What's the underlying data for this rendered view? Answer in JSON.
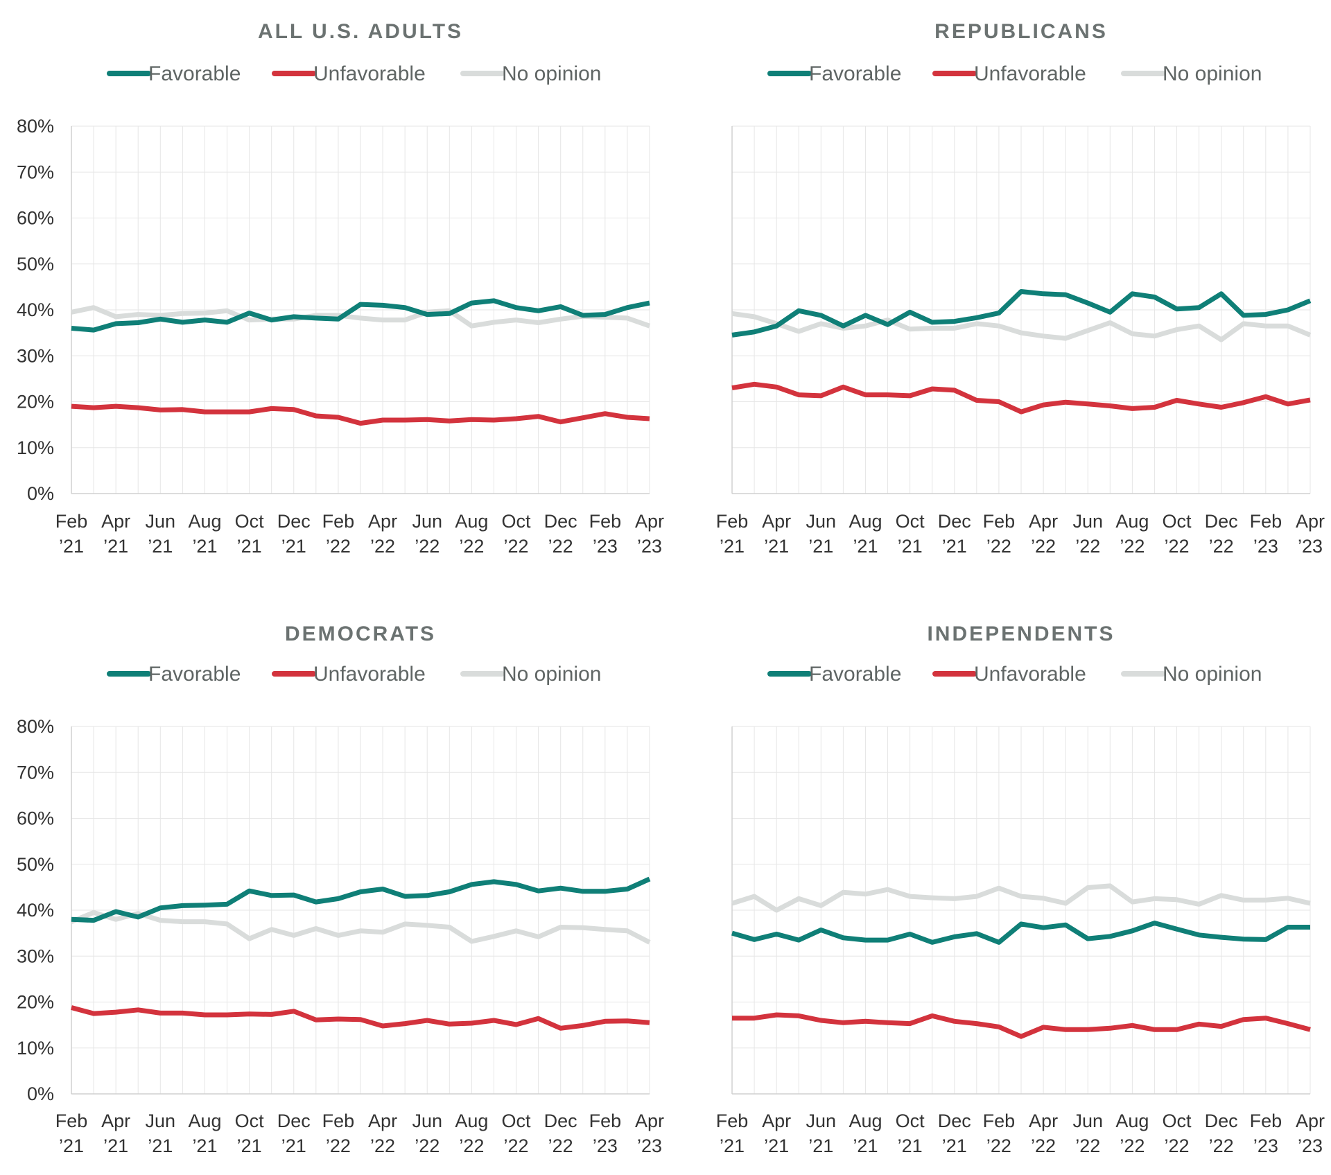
{
  "colors": {
    "favorable": "#0f7f77",
    "unfavorable": "#d3333d",
    "no_opinion": "#d9dcdb"
  },
  "chart_data": [
    {
      "type": "line",
      "title": "ALL U.S. ADULTS",
      "xlabel": "",
      "ylabel": "",
      "ylim": [
        0,
        80
      ],
      "y_ticks": [
        "0%",
        "10%",
        "20%",
        "30%",
        "40%",
        "50%",
        "60%",
        "70%",
        "80%"
      ],
      "x_ticks": [
        [
          "Feb",
          "’21"
        ],
        [
          "Apr",
          "’21"
        ],
        [
          "Jun",
          "’21"
        ],
        [
          "Aug",
          "’21"
        ],
        [
          "Oct",
          "’21"
        ],
        [
          "Dec",
          "’21"
        ],
        [
          "Feb",
          "’22"
        ],
        [
          "Apr",
          "’22"
        ],
        [
          "Jun",
          "’22"
        ],
        [
          "Aug",
          "’22"
        ],
        [
          "Oct",
          "’22"
        ],
        [
          "Dec",
          "’22"
        ],
        [
          "Feb",
          "’23"
        ],
        [
          "Apr",
          "’23"
        ]
      ],
      "series": [
        {
          "name": "Favorable",
          "values": [
            36,
            35.6,
            37,
            37.2,
            38,
            37.3,
            37.8,
            37.3,
            39.3,
            37.8,
            38.5,
            38.2,
            38,
            41.2,
            41,
            40.5,
            39,
            39.2,
            41.5,
            42,
            40.5,
            39.8,
            40.7,
            38.8,
            39,
            40.5,
            41.5
          ]
        },
        {
          "name": "Unfavorable",
          "values": [
            19,
            18.7,
            19,
            18.7,
            18.2,
            18.3,
            17.8,
            17.8,
            17.8,
            18.5,
            18.3,
            16.9,
            16.6,
            15.3,
            16,
            16,
            16.1,
            15.8,
            16.1,
            16,
            16.3,
            16.8,
            15.6,
            16.5,
            17.4,
            16.6,
            16.3
          ]
        },
        {
          "name": "No opinion",
          "values": [
            39.5,
            40.5,
            38.5,
            39,
            38.8,
            39.2,
            39.3,
            39.8,
            37.8,
            38,
            38,
            38.8,
            38.8,
            38.2,
            37.8,
            37.8,
            39.5,
            39.8,
            36.5,
            37.3,
            37.8,
            37.2,
            38,
            38.6,
            38.4,
            38.2,
            36.5
          ]
        }
      ]
    },
    {
      "type": "line",
      "title": "REPUBLICANS",
      "xlabel": "",
      "ylabel": "",
      "ylim": [
        0,
        80
      ],
      "y_ticks": [],
      "x_ticks": [
        [
          "Feb",
          "’21"
        ],
        [
          "Apr",
          "’21"
        ],
        [
          "Jun",
          "’21"
        ],
        [
          "Aug",
          "’21"
        ],
        [
          "Oct",
          "’21"
        ],
        [
          "Dec",
          "’21"
        ],
        [
          "Feb",
          "’22"
        ],
        [
          "Apr",
          "’22"
        ],
        [
          "Jun",
          "’22"
        ],
        [
          "Aug",
          "’22"
        ],
        [
          "Oct",
          "’22"
        ],
        [
          "Dec",
          "’22"
        ],
        [
          "Feb",
          "’23"
        ],
        [
          "Apr",
          "’23"
        ]
      ],
      "series": [
        {
          "name": "Favorable",
          "values": [
            34.5,
            35.2,
            36.5,
            39.8,
            38.8,
            36.5,
            38.8,
            36.8,
            39.5,
            37.3,
            37.5,
            38.3,
            39.3,
            44,
            43.5,
            43.3,
            41.5,
            39.5,
            43.5,
            42.8,
            40.2,
            40.5,
            43.5,
            38.8,
            39,
            40,
            42
          ]
        },
        {
          "name": "Unfavorable",
          "values": [
            23,
            23.8,
            23.2,
            21.5,
            21.3,
            23.2,
            21.5,
            21.5,
            21.3,
            22.8,
            22.5,
            20.3,
            20,
            17.8,
            19.3,
            19.9,
            19.5,
            19.1,
            18.5,
            18.8,
            20.3,
            19.5,
            18.8,
            19.8,
            21.1,
            19.5,
            20.4
          ]
        },
        {
          "name": "No opinion",
          "values": [
            39.2,
            38.5,
            37,
            35.3,
            37,
            36,
            36.5,
            37.8,
            35.8,
            36,
            36,
            37,
            36.5,
            35,
            34.3,
            33.8,
            35.5,
            37.2,
            34.8,
            34.3,
            35.7,
            36.5,
            33.5,
            37,
            36.5,
            36.5,
            34.5
          ]
        }
      ]
    },
    {
      "type": "line",
      "title": "DEMOCRATS",
      "xlabel": "",
      "ylabel": "",
      "ylim": [
        0,
        80
      ],
      "y_ticks": [
        "0%",
        "10%",
        "20%",
        "30%",
        "40%",
        "50%",
        "60%",
        "70%",
        "80%"
      ],
      "x_ticks": [
        [
          "Feb",
          "’21"
        ],
        [
          "Apr",
          "’21"
        ],
        [
          "Jun",
          "’21"
        ],
        [
          "Aug",
          "’21"
        ],
        [
          "Oct",
          "’21"
        ],
        [
          "Dec",
          "’21"
        ],
        [
          "Feb",
          "’22"
        ],
        [
          "Apr",
          "’22"
        ],
        [
          "Jun",
          "’22"
        ],
        [
          "Aug",
          "’22"
        ],
        [
          "Oct",
          "’22"
        ],
        [
          "Dec",
          "’22"
        ],
        [
          "Feb",
          "’23"
        ],
        [
          "Apr",
          "’23"
        ]
      ],
      "series": [
        {
          "name": "Favorable",
          "values": [
            38,
            37.8,
            39.7,
            38.5,
            40.5,
            41,
            41.1,
            41.3,
            44.2,
            43.2,
            43.3,
            41.8,
            42.5,
            44,
            44.6,
            43,
            43.2,
            44,
            45.6,
            46.2,
            45.6,
            44.2,
            44.8,
            44.1,
            44.1,
            44.6,
            46.8
          ]
        },
        {
          "name": "Unfavorable",
          "values": [
            18.8,
            17.5,
            17.8,
            18.3,
            17.6,
            17.6,
            17.2,
            17.2,
            17.4,
            17.3,
            18,
            16.1,
            16.3,
            16.2,
            14.8,
            15.3,
            16,
            15.2,
            15.4,
            16,
            15.1,
            16.4,
            14.3,
            14.9,
            15.8,
            15.9,
            15.5
          ]
        },
        {
          "name": "No opinion",
          "values": [
            37.5,
            39.5,
            38,
            39.3,
            37.8,
            37.5,
            37.5,
            37,
            33.8,
            35.8,
            34.5,
            36,
            34.5,
            35.5,
            35.2,
            37,
            36.7,
            36.3,
            33.2,
            34.3,
            35.5,
            34.2,
            36.3,
            36.2,
            35.8,
            35.5,
            33
          ]
        }
      ]
    },
    {
      "type": "line",
      "title": "INDEPENDENTS",
      "xlabel": "",
      "ylabel": "",
      "ylim": [
        0,
        80
      ],
      "y_ticks": [],
      "x_ticks": [
        [
          "Feb",
          "’21"
        ],
        [
          "Apr",
          "’21"
        ],
        [
          "Jun",
          "’21"
        ],
        [
          "Aug",
          "’21"
        ],
        [
          "Oct",
          "’21"
        ],
        [
          "Dec",
          "’21"
        ],
        [
          "Feb",
          "’22"
        ],
        [
          "Apr",
          "’22"
        ],
        [
          "Jun",
          "’22"
        ],
        [
          "Aug",
          "’22"
        ],
        [
          "Oct",
          "’22"
        ],
        [
          "Dec",
          "’22"
        ],
        [
          "Feb",
          "’23"
        ],
        [
          "Apr",
          "’23"
        ]
      ],
      "series": [
        {
          "name": "Favorable",
          "values": [
            35,
            33.6,
            34.8,
            33.5,
            35.7,
            34,
            33.5,
            33.5,
            34.8,
            33,
            34.2,
            34.9,
            33,
            37,
            36.2,
            36.8,
            33.8,
            34.3,
            35.5,
            37.2,
            35.9,
            34.6,
            34.1,
            33.7,
            33.6,
            36.3,
            36.3
          ]
        },
        {
          "name": "Unfavorable",
          "values": [
            16.5,
            16.5,
            17.2,
            17,
            16,
            15.5,
            15.8,
            15.5,
            15.3,
            17,
            15.8,
            15.3,
            14.6,
            12.5,
            14.5,
            14,
            14,
            14.3,
            14.9,
            14,
            14,
            15.2,
            14.7,
            16.2,
            16.5,
            15.3,
            14
          ]
        },
        {
          "name": "No opinion",
          "values": [
            41.5,
            43,
            40,
            42.5,
            41,
            43.9,
            43.5,
            44.5,
            43,
            42.7,
            42.5,
            43,
            44.8,
            43,
            42.6,
            41.5,
            44.9,
            45.3,
            41.8,
            42.5,
            42.3,
            41.3,
            43.2,
            42.2,
            42.2,
            42.6,
            41.5
          ]
        }
      ]
    }
  ]
}
